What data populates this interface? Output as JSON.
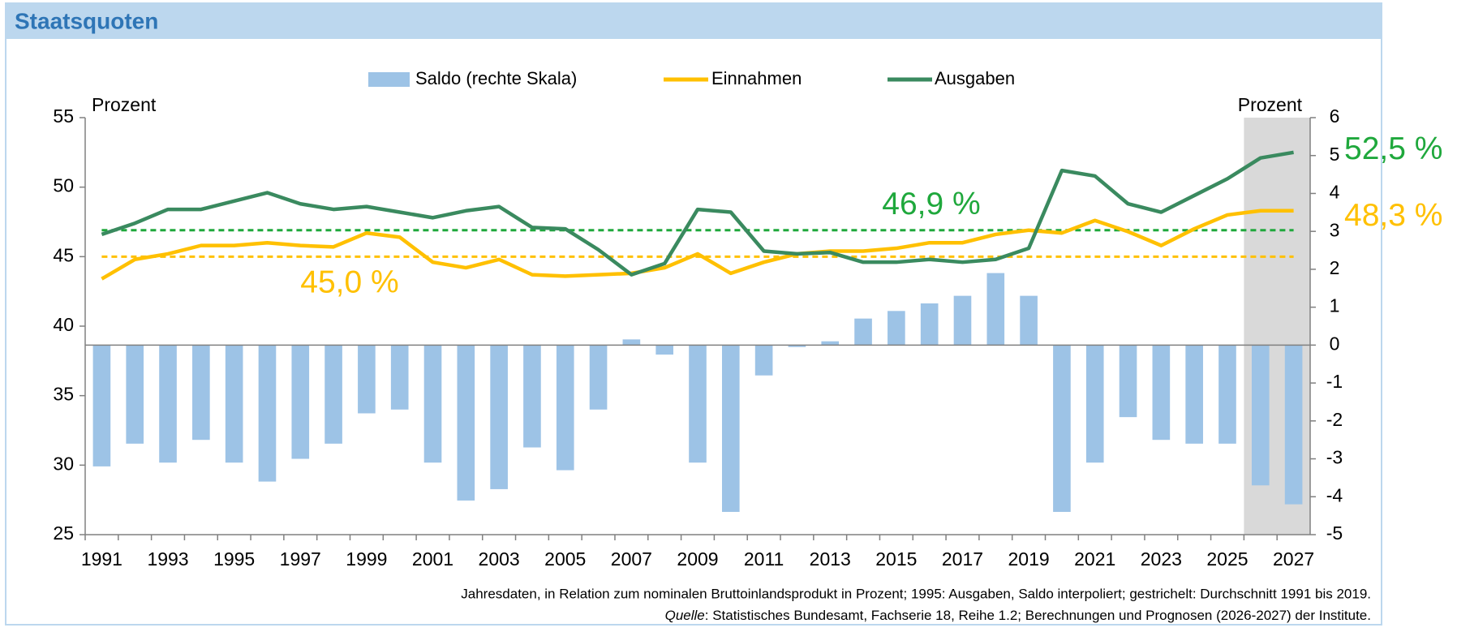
{
  "chart_data": {
    "type": "combo",
    "title": "Staatsquoten",
    "y_label": "Prozent",
    "y2_label": "Prozent",
    "x": [
      1991,
      1992,
      1993,
      1994,
      1995,
      1996,
      1997,
      1998,
      1999,
      2000,
      2001,
      2002,
      2003,
      2004,
      2005,
      2006,
      2007,
      2008,
      2009,
      2010,
      2011,
      2012,
      2013,
      2014,
      2015,
      2016,
      2017,
      2018,
      2019,
      2020,
      2021,
      2022,
      2023,
      2024,
      2025,
      2026,
      2027
    ],
    "xlim": [
      1990.5,
      2027.5
    ],
    "xticks": [
      1991,
      1993,
      1995,
      1997,
      1999,
      2001,
      2003,
      2005,
      2007,
      2009,
      2011,
      2013,
      2015,
      2017,
      2019,
      2021,
      2023,
      2025,
      2027
    ],
    "ylim": [
      25,
      55
    ],
    "yticks": [
      25,
      30,
      35,
      40,
      45,
      50,
      55
    ],
    "y2lim": [
      -5,
      6
    ],
    "y2ticks": [
      -5,
      -4,
      -3,
      -2,
      -1,
      0,
      1,
      2,
      3,
      4,
      5,
      6
    ],
    "shade_x": [
      2025.5,
      2027.5
    ],
    "series": [
      {
        "name": "Saldo (rechte Skala)",
        "type": "bar",
        "axis": "y2",
        "color": "#9dc3e6",
        "values": [
          -3.2,
          -2.6,
          -3.1,
          -2.5,
          -3.1,
          -3.6,
          -3.0,
          -2.6,
          -1.8,
          -1.7,
          -3.1,
          -4.1,
          -3.8,
          -2.7,
          -3.3,
          -1.7,
          0.15,
          -0.25,
          -3.1,
          -4.4,
          -0.8,
          -0.05,
          0.1,
          0.7,
          0.9,
          1.1,
          1.3,
          1.9,
          1.3,
          -4.4,
          -3.1,
          -1.9,
          -2.5,
          -2.6,
          -2.6,
          -3.7,
          -4.2
        ]
      },
      {
        "name": "Einnahmen",
        "type": "line",
        "color": "#ffc000",
        "values": [
          43.4,
          44.8,
          45.2,
          45.8,
          45.8,
          46.0,
          45.8,
          45.7,
          46.7,
          46.4,
          44.6,
          44.2,
          44.8,
          43.7,
          43.6,
          43.7,
          43.8,
          44.2,
          45.2,
          43.8,
          44.6,
          45.2,
          45.4,
          45.4,
          45.6,
          46.0,
          46.0,
          46.6,
          46.9,
          46.7,
          47.6,
          46.8,
          45.8,
          47.0,
          48.0,
          48.3,
          48.3
        ]
      },
      {
        "name": "Ausgaben",
        "type": "line",
        "color": "#3a8a5f",
        "values": [
          46.6,
          47.4,
          48.4,
          48.4,
          49.0,
          49.6,
          48.8,
          48.4,
          48.6,
          48.2,
          47.8,
          48.3,
          48.6,
          47.1,
          47.0,
          45.5,
          43.7,
          44.5,
          48.4,
          48.2,
          45.4,
          45.2,
          45.3,
          44.6,
          44.6,
          44.8,
          44.6,
          44.8,
          45.6,
          51.2,
          50.8,
          48.8,
          48.2,
          49.4,
          50.6,
          52.1,
          52.5
        ]
      }
    ],
    "averages": [
      {
        "value": 46.9,
        "label": "46,9 %",
        "color": "#1fa83c"
      },
      {
        "value": 45.0,
        "label": "45,0 %",
        "color": "#ffc000"
      }
    ],
    "annotations": [
      {
        "text": "52,5 %",
        "value": 52.5,
        "color": "#1fa83c"
      },
      {
        "text": "48,3 %",
        "value": 48.3,
        "color": "#ffc000"
      }
    ],
    "footnote": "Jahresdaten, in Relation zum nominalen Bruttoinlandsprodukt in Prozent; 1995: Ausgaben, Saldo interpoliert; gestrichelt: Durchschnitt 1991 bis 2019.",
    "source_label": "Quelle",
    "source_text": ": Statistisches Bundesamt, Fachserie 18, Reihe 1.2; Berechnungen und Prognosen (2026-2027) der Institute."
  }
}
